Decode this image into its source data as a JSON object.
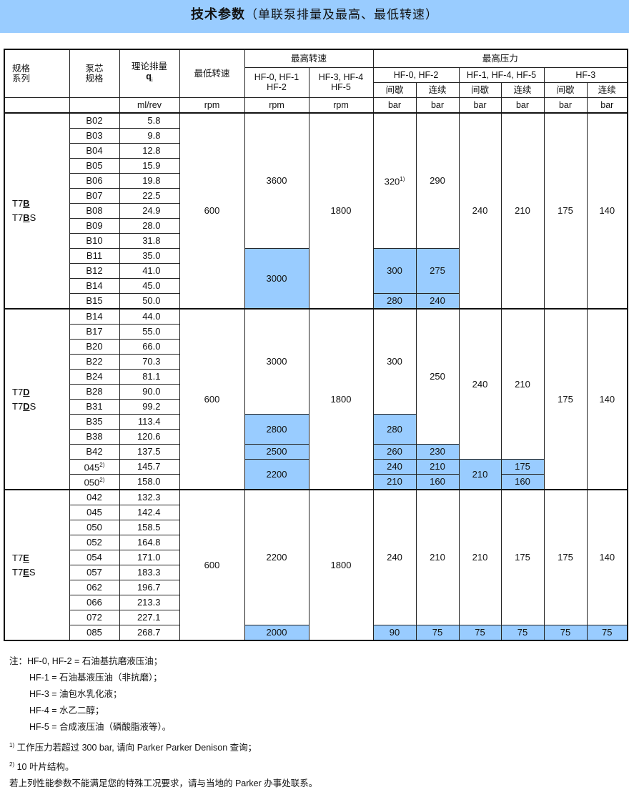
{
  "title": {
    "bold": "技术参数",
    "rest": "（单联泵排量及最高、最低转速）"
  },
  "colors": {
    "highlight": "#99ccff",
    "banner": "#99ccff"
  },
  "header": {
    "series": "规格\n系列",
    "core": "泵芯\n规格",
    "displacement": "理论排量",
    "displacement_symbol": "q",
    "displacement_sub": "i",
    "min_speed": "最低转速",
    "max_speed": "最高转速",
    "max_pressure": "最高压力",
    "speed_a": "HF-0, HF-1\nHF-2",
    "speed_b": "HF-3, HF-4\nHF-5",
    "press_a": "HF-0, HF-2",
    "press_b": "HF-1, HF-4, HF-5",
    "press_c": "HF-3",
    "intermittent": "间歇",
    "continuous": "连续",
    "unit_disp": "ml/rev",
    "unit_rpm": "rpm",
    "unit_bar": "bar"
  },
  "blocks": [
    {
      "series_prefix": "T7",
      "series_letter": "B",
      "series_suffix": "S",
      "rows": [
        {
          "core": "B02",
          "disp": "5.8"
        },
        {
          "core": "B03",
          "disp": "9.8"
        },
        {
          "core": "B04",
          "disp": "12.8"
        },
        {
          "core": "B05",
          "disp": "15.9"
        },
        {
          "core": "B06",
          "disp": "19.8"
        },
        {
          "core": "B07",
          "disp": "22.5"
        },
        {
          "core": "B08",
          "disp": "24.9"
        },
        {
          "core": "B09",
          "disp": "28.0"
        },
        {
          "core": "B10",
          "disp": "31.8"
        },
        {
          "core": "B11",
          "disp": "35.0"
        },
        {
          "core": "B12",
          "disp": "41.0"
        },
        {
          "core": "B14",
          "disp": "45.0"
        },
        {
          "core": "B15",
          "disp": "50.0"
        }
      ],
      "columns": [
        [
          {
            "v": "600",
            "rows": 13
          }
        ],
        [
          {
            "v": "3600",
            "rows": 9
          },
          {
            "v": "3000",
            "rows": 4,
            "hl": true
          }
        ],
        [
          {
            "v": "1800",
            "rows": 13
          }
        ],
        [
          {
            "v": "320",
            "note": "1)",
            "rows": 9
          },
          {
            "v": "300",
            "rows": 3,
            "hl": true
          },
          {
            "v": "280",
            "rows": 1,
            "hl": true
          }
        ],
        [
          {
            "v": "290",
            "rows": 9
          },
          {
            "v": "275",
            "rows": 3,
            "hl": true
          },
          {
            "v": "240",
            "rows": 1,
            "hl": true
          }
        ],
        [
          {
            "v": "240",
            "rows": 13
          }
        ],
        [
          {
            "v": "210",
            "rows": 13
          }
        ],
        [
          {
            "v": "175",
            "rows": 13
          }
        ],
        [
          {
            "v": "140",
            "rows": 13
          }
        ]
      ]
    },
    {
      "series_prefix": "T7",
      "series_letter": "D",
      "series_suffix": "S",
      "rows": [
        {
          "core": "B14",
          "disp": "44.0"
        },
        {
          "core": "B17",
          "disp": "55.0"
        },
        {
          "core": "B20",
          "disp": "66.0"
        },
        {
          "core": "B22",
          "disp": "70.3"
        },
        {
          "core": "B24",
          "disp": "81.1"
        },
        {
          "core": "B28",
          "disp": "90.0"
        },
        {
          "core": "B31",
          "disp": "99.2"
        },
        {
          "core": "B35",
          "disp": "113.4"
        },
        {
          "core": "B38",
          "disp": "120.6"
        },
        {
          "core": "B42",
          "disp": "137.5"
        },
        {
          "core": "045",
          "note": "2)",
          "disp": "145.7"
        },
        {
          "core": "050",
          "note": "2)",
          "disp": "158.0"
        }
      ],
      "columns": [
        [
          {
            "v": "600",
            "rows": 12
          }
        ],
        [
          {
            "v": "3000",
            "rows": 7
          },
          {
            "v": "2800",
            "rows": 2,
            "hl": true
          },
          {
            "v": "2500",
            "rows": 1,
            "hl": true
          },
          {
            "v": "2200",
            "rows": 2,
            "hl": true
          }
        ],
        [
          {
            "v": "1800",
            "rows": 12
          }
        ],
        [
          {
            "v": "300",
            "rows": 7
          },
          {
            "v": "280",
            "rows": 2,
            "hl": true
          },
          {
            "v": "260",
            "rows": 1,
            "hl": true
          },
          {
            "v": "240",
            "rows": 1,
            "hl": true
          },
          {
            "v": "210",
            "rows": 1,
            "hl": true
          }
        ],
        [
          {
            "v": "250",
            "rows": 9
          },
          {
            "v": "230",
            "rows": 1,
            "hl": true
          },
          {
            "v": "210",
            "rows": 1,
            "hl": true
          },
          {
            "v": "160",
            "rows": 1,
            "hl": true
          }
        ],
        [
          {
            "v": "240",
            "rows": 10
          },
          {
            "v": "210",
            "rows": 2,
            "hl": true
          }
        ],
        [
          {
            "v": "210",
            "rows": 10
          },
          {
            "v": "175",
            "rows": 1,
            "hl": true
          },
          {
            "v": "160",
            "rows": 1,
            "hl": true
          }
        ],
        [
          {
            "v": "175",
            "rows": 12
          }
        ],
        [
          {
            "v": "140",
            "rows": 12
          }
        ]
      ]
    },
    {
      "series_prefix": "T7",
      "series_letter": "E",
      "series_suffix": "S",
      "rows": [
        {
          "core": "042",
          "disp": "132.3"
        },
        {
          "core": "045",
          "disp": "142.4"
        },
        {
          "core": "050",
          "disp": "158.5"
        },
        {
          "core": "052",
          "disp": "164.8"
        },
        {
          "core": "054",
          "disp": "171.0"
        },
        {
          "core": "057",
          "disp": "183.3"
        },
        {
          "core": "062",
          "disp": "196.7"
        },
        {
          "core": "066",
          "disp": "213.3"
        },
        {
          "core": "072",
          "disp": "227.1"
        },
        {
          "core": "085",
          "disp": "268.7"
        }
      ],
      "columns": [
        [
          {
            "v": "600",
            "rows": 10
          }
        ],
        [
          {
            "v": "2200",
            "rows": 9
          },
          {
            "v": "2000",
            "rows": 1,
            "hl": true
          }
        ],
        [
          {
            "v": "1800",
            "rows": 10
          }
        ],
        [
          {
            "v": "240",
            "rows": 9
          },
          {
            "v": "90",
            "rows": 1,
            "hl": true
          }
        ],
        [
          {
            "v": "210",
            "rows": 9
          },
          {
            "v": "75",
            "rows": 1,
            "hl": true
          }
        ],
        [
          {
            "v": "210",
            "rows": 9
          },
          {
            "v": "75",
            "rows": 1,
            "hl": true
          }
        ],
        [
          {
            "v": "175",
            "rows": 9
          },
          {
            "v": "75",
            "rows": 1,
            "hl": true
          }
        ],
        [
          {
            "v": "175",
            "rows": 9
          },
          {
            "v": "75",
            "rows": 1,
            "hl": true
          }
        ],
        [
          {
            "v": "140",
            "rows": 9
          },
          {
            "v": "75",
            "rows": 1,
            "hl": true
          }
        ]
      ]
    }
  ],
  "notes": {
    "prefix": "注：",
    "fluids": [
      {
        "code": "HF-0, HF-2 =",
        "desc": "石油基抗磨液压油；"
      },
      {
        "code": "HF-1 =",
        "desc": "石油基液压油（非抗磨）；"
      },
      {
        "code": "HF-3 =",
        "desc": "油包水乳化液；"
      },
      {
        "code": "HF-4 =",
        "desc": "水乙二醇；"
      },
      {
        "code": "HF-5 =",
        "desc": "合成液压油（磷酸脂液等）。"
      }
    ],
    "footnote1_mark": "1)",
    "footnote1": "工作压力若超过 300 bar, 请向 Parker Parker Denison 查询；",
    "footnote2_mark": "2)",
    "footnote2": "10 叶片结构。",
    "contact": "若上列性能参数不能满足您的特殊工况要求，请与当地的 Parker 办事处联系。"
  }
}
